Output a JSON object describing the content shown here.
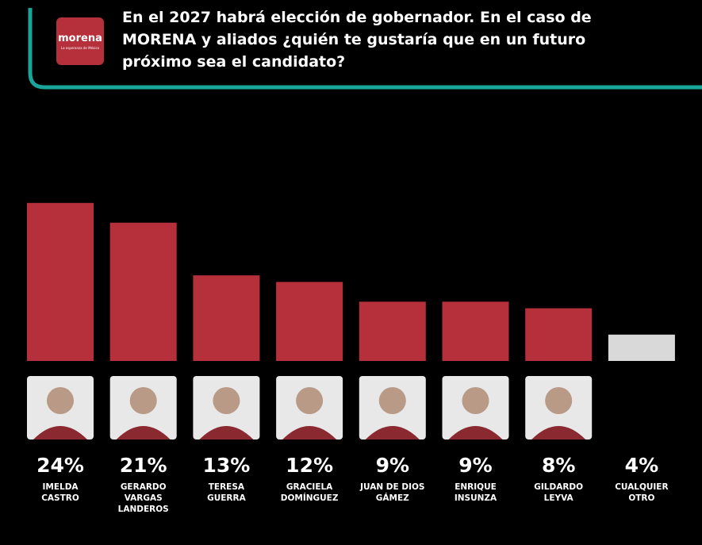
{
  "header": {
    "logo": {
      "name": "morena",
      "tagline": "La esperanza de México"
    },
    "title": "En el 2027 habrá elección de gobernador. En el caso de MORENA y aliados ¿quién te gustaría que en un futuro próximo sea el candidato?"
  },
  "chart_data": {
    "type": "bar",
    "categories": [
      "IMELDA CASTRO",
      "GERARDO VARGAS LANDEROS",
      "TERESA GUERRA",
      "GRACIELA DOMÍNGUEZ",
      "JUAN DE DIOS GÁMEZ",
      "ENRIQUE INSUNZA",
      "GILDARDO LEYVA",
      "CUALQUIER OTRO"
    ],
    "values": [
      24,
      21,
      13,
      12,
      9,
      9,
      8,
      4
    ],
    "value_labels": [
      "24%",
      "21%",
      "13%",
      "12%",
      "9%",
      "9%",
      "8%",
      "4%"
    ],
    "colors": [
      "#b5303a",
      "#b5303a",
      "#b5303a",
      "#b5303a",
      "#b5303a",
      "#b5303a",
      "#b5303a",
      "#d9d9d9"
    ]
  }
}
